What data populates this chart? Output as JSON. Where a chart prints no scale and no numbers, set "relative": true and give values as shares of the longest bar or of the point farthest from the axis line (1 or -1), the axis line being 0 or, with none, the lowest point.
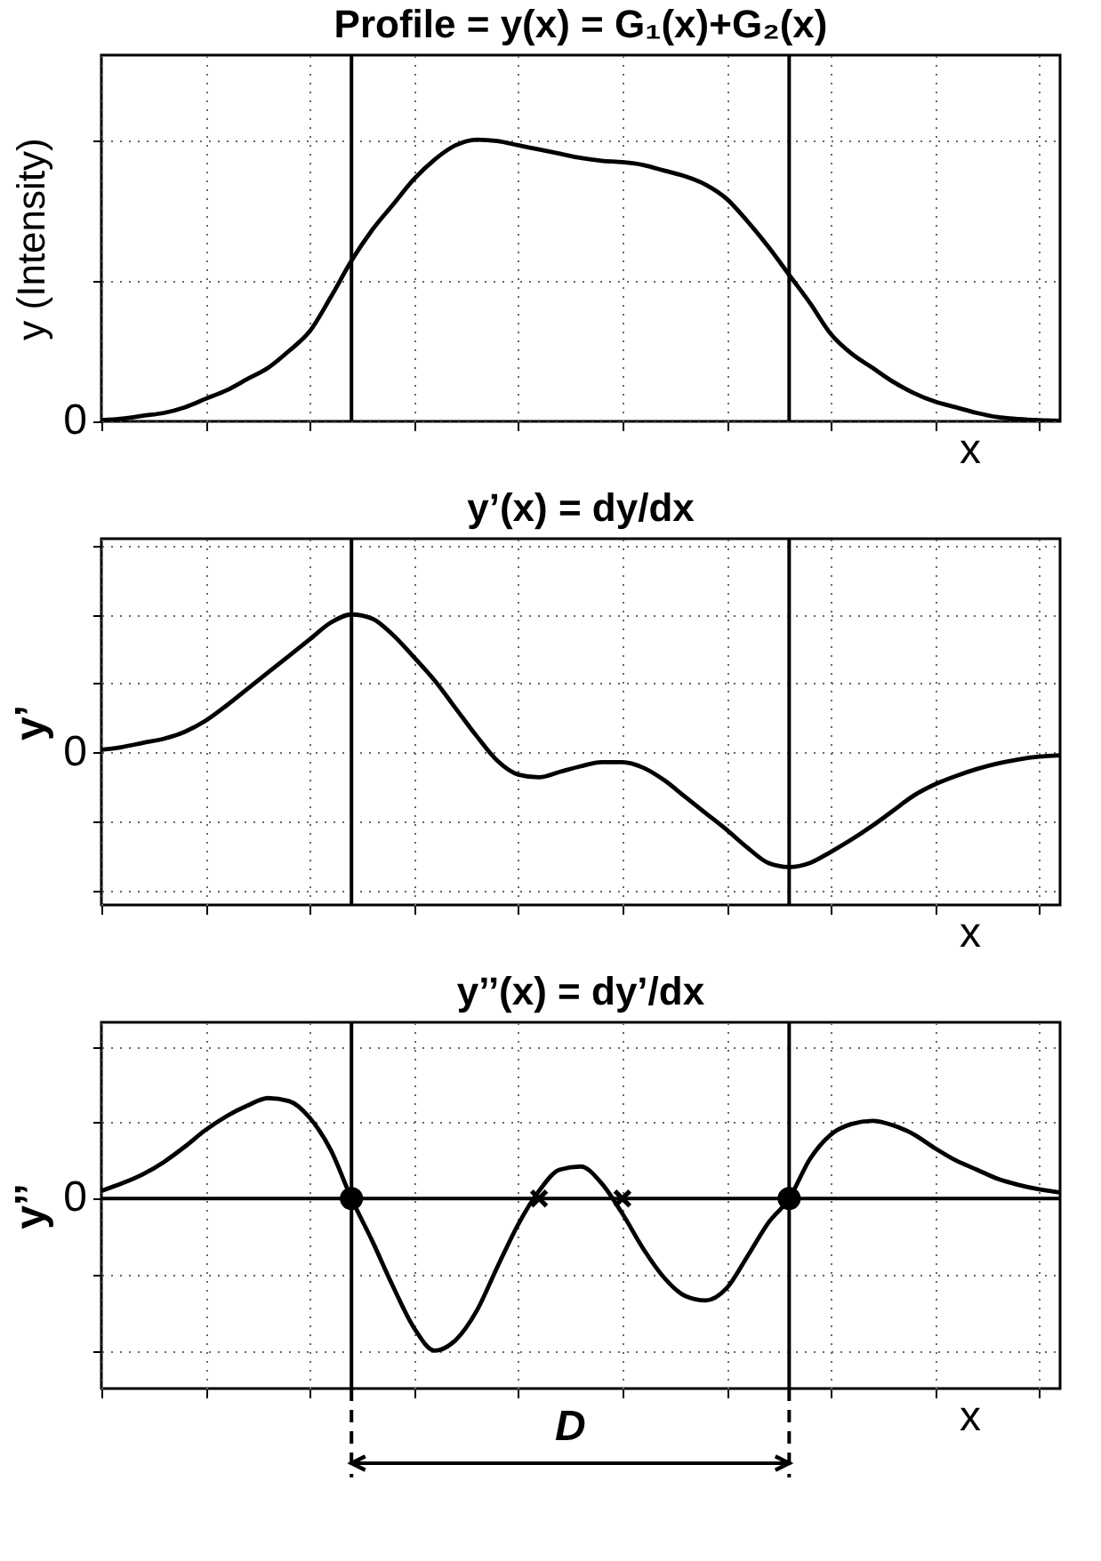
{
  "chart_data": [
    {
      "type": "line",
      "title": "Profile = y(x) = G₁(x)+G₂(x)",
      "xlabel": "x",
      "ylabel": "y (Intensity)",
      "relative": true,
      "grid": true,
      "annotations": [
        "0"
      ],
      "categories": [
        null,
        null,
        null,
        null,
        null,
        null,
        null,
        null,
        null,
        null,
        null,
        null,
        null,
        null,
        null,
        null,
        null,
        null,
        null,
        null,
        null,
        null,
        null,
        null,
        null,
        null,
        null,
        null,
        null,
        null,
        null,
        null,
        null,
        null,
        null,
        null,
        null,
        null,
        null,
        null,
        null,
        null,
        null,
        null,
        null,
        null,
        null
      ],
      "series": [
        {
          "color": "#000000",
          "values": [
            0.004,
            0.01,
            0.02,
            0.03,
            0.05,
            0.08,
            0.11,
            0.15,
            0.19,
            0.25,
            0.32,
            0.44,
            0.57,
            0.68,
            0.77,
            0.86,
            0.93,
            0.98,
            1,
            0.995,
            0.98,
            0.965,
            0.95,
            0.935,
            0.925,
            0.92,
            0.91,
            0.89,
            0.87,
            0.84,
            0.79,
            0.71,
            0.62,
            0.52,
            0.42,
            0.31,
            0.24,
            0.19,
            0.14,
            0.1,
            0.07,
            0.05,
            0.03,
            0.015,
            0.008,
            0.004,
            0.002
          ]
        }
      ]
    },
    {
      "type": "line",
      "title": "y’(x) = dy/dx",
      "xlabel": "x",
      "ylabel": "y’",
      "relative": true,
      "grid": true,
      "annotations": [
        "0"
      ],
      "categories": [
        null,
        null,
        null,
        null,
        null,
        null,
        null,
        null,
        null,
        null,
        null,
        null,
        null,
        null,
        null,
        null,
        null,
        null,
        null,
        null,
        null,
        null,
        null,
        null,
        null,
        null,
        null,
        null,
        null,
        null,
        null,
        null,
        null,
        null,
        null,
        null,
        null,
        null,
        null,
        null,
        null,
        null,
        null,
        null,
        null,
        null,
        null
      ],
      "series": [
        {
          "color": "#000000",
          "values": [
            0.02,
            0.04,
            0.07,
            0.1,
            0.15,
            0.23,
            0.34,
            0.46,
            0.58,
            0.7,
            0.82,
            0.94,
            1,
            0.97,
            0.85,
            0.69,
            0.52,
            0.32,
            0.12,
            -0.06,
            -0.16,
            -0.18,
            -0.14,
            -0.1,
            -0.07,
            -0.07,
            -0.11,
            -0.2,
            -0.32,
            -0.44,
            -0.56,
            -0.69,
            -0.8,
            -0.83,
            -0.8,
            -0.72,
            -0.63,
            -0.53,
            -0.42,
            -0.31,
            -0.23,
            -0.17,
            -0.12,
            -0.08,
            -0.05,
            -0.03,
            -0.02
          ]
        }
      ]
    },
    {
      "type": "line",
      "title": "y’’(x) = dy’/dx",
      "xlabel": "x",
      "ylabel": "y’’",
      "relative": true,
      "grid": true,
      "categories": [
        null,
        null,
        null,
        null,
        null,
        null,
        null,
        null,
        null,
        null,
        null,
        null,
        null,
        null,
        null,
        null,
        null,
        null,
        null,
        null,
        null,
        null,
        null,
        null,
        null,
        null,
        null,
        null,
        null,
        null,
        null,
        null,
        null,
        null,
        null,
        null,
        null,
        null,
        null,
        null,
        null,
        null,
        null,
        null,
        null,
        null,
        null
      ],
      "series": [
        {
          "color": "#000000",
          "values": [
            0.05,
            0.1,
            0.16,
            0.24,
            0.34,
            0.45,
            0.54,
            0.61,
            0.66,
            0.64,
            0.53,
            0.32,
            0,
            -0.28,
            -0.58,
            -0.85,
            -1,
            -0.93,
            -0.74,
            -0.45,
            -0.17,
            0.05,
            0.19,
            0.21,
            0.1,
            -0.1,
            -0.33,
            -0.52,
            -0.64,
            -0.67,
            -0.59,
            -0.38,
            -0.16,
            0,
            0.26,
            0.42,
            0.49,
            0.51,
            0.48,
            0.42,
            0.33,
            0.25,
            0.19,
            0.13,
            0.09,
            0.06,
            0.04
          ]
        },
        {
          "type": "scatter",
          "marker": "circle",
          "color": "#000000",
          "values": [
            null,
            null,
            null,
            null,
            null,
            null,
            null,
            null,
            null,
            null,
            null,
            null,
            0,
            null,
            null,
            null,
            null,
            null,
            null,
            null,
            null,
            null,
            null,
            null,
            null,
            null,
            null,
            null,
            null,
            null,
            null,
            null,
            null,
            0,
            null,
            null,
            null,
            null,
            null,
            null,
            null,
            null,
            null,
            null,
            null,
            null,
            null
          ]
        },
        {
          "type": "scatter",
          "marker": "cross",
          "color": "#000000",
          "values": [
            null,
            null,
            null,
            null,
            null,
            null,
            null,
            null,
            null,
            null,
            null,
            null,
            null,
            null,
            null,
            null,
            null,
            null,
            null,
            null,
            null,
            0,
            null,
            null,
            null,
            0,
            null,
            null,
            null,
            null,
            null,
            null,
            null,
            null,
            null,
            null,
            null,
            null,
            null,
            null,
            null,
            null,
            null,
            null,
            null,
            null,
            null
          ]
        }
      ],
      "annotations": [
        "0",
        "D"
      ]
    }
  ]
}
